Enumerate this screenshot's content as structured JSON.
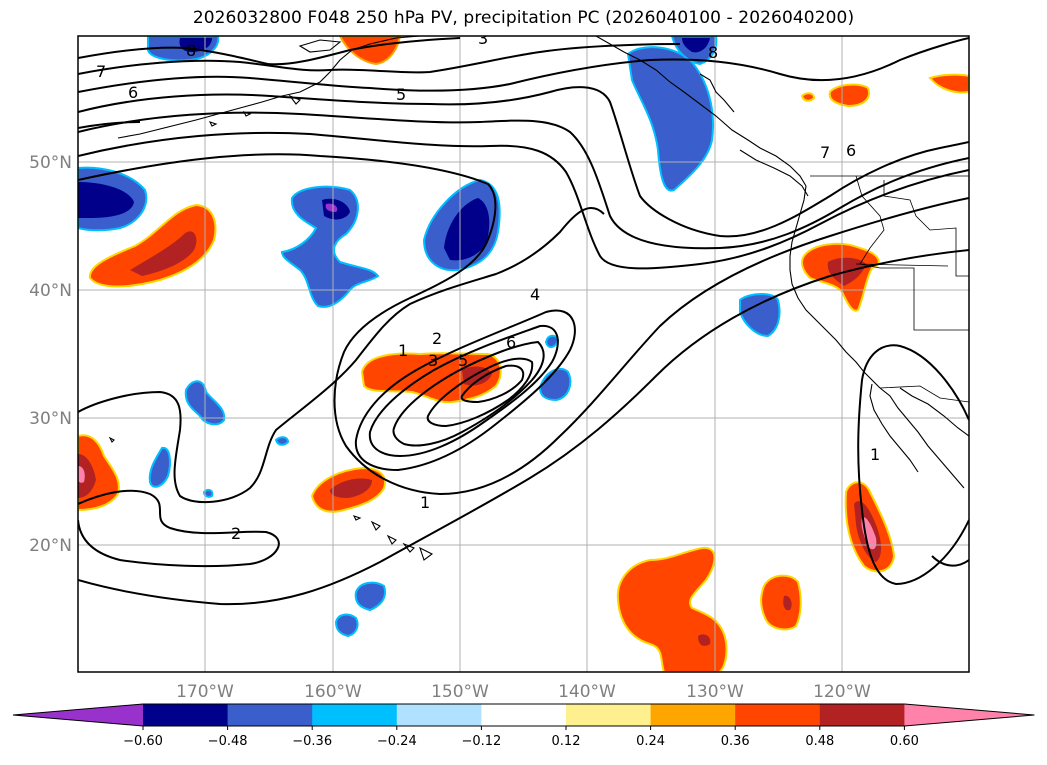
{
  "title": "2026032800 F048 250 hPa PV, precipitation PC (2026040100 - 2026040200)",
  "lat_labels": [
    "50°N",
    "40°N",
    "30°N",
    "20°N"
  ],
  "lon_labels": [
    "170°W",
    "160°W",
    "150°W",
    "140°W",
    "130°W",
    "120°W"
  ],
  "colorbar": {
    "colors": [
      "#9932cc",
      "#00008b",
      "#3a5fcd",
      "#00bfff",
      "#b0e2ff",
      "#ffffff",
      "#fff08f",
      "#ffa500",
      "#ff4500",
      "#b22222",
      "#ff82ab"
    ],
    "tick_labels": [
      "−0.60",
      "−0.48",
      "−0.36",
      "−0.24",
      "−0.12",
      "0.12",
      "0.24",
      "0.36",
      "0.48",
      "0.60"
    ]
  },
  "contour_labels": {
    "c7a": "7",
    "c6a": "6",
    "c8a": "8",
    "c5a": "5",
    "c3a": "3",
    "c8b": "8",
    "c7b": "7",
    "c6b": "6",
    "c4": "4",
    "c1a": "1",
    "c2a": "2",
    "c3b": "3",
    "c5b": "5",
    "c6c": "6",
    "c2b": "2",
    "c1b": "1",
    "c1c": "1"
  }
}
